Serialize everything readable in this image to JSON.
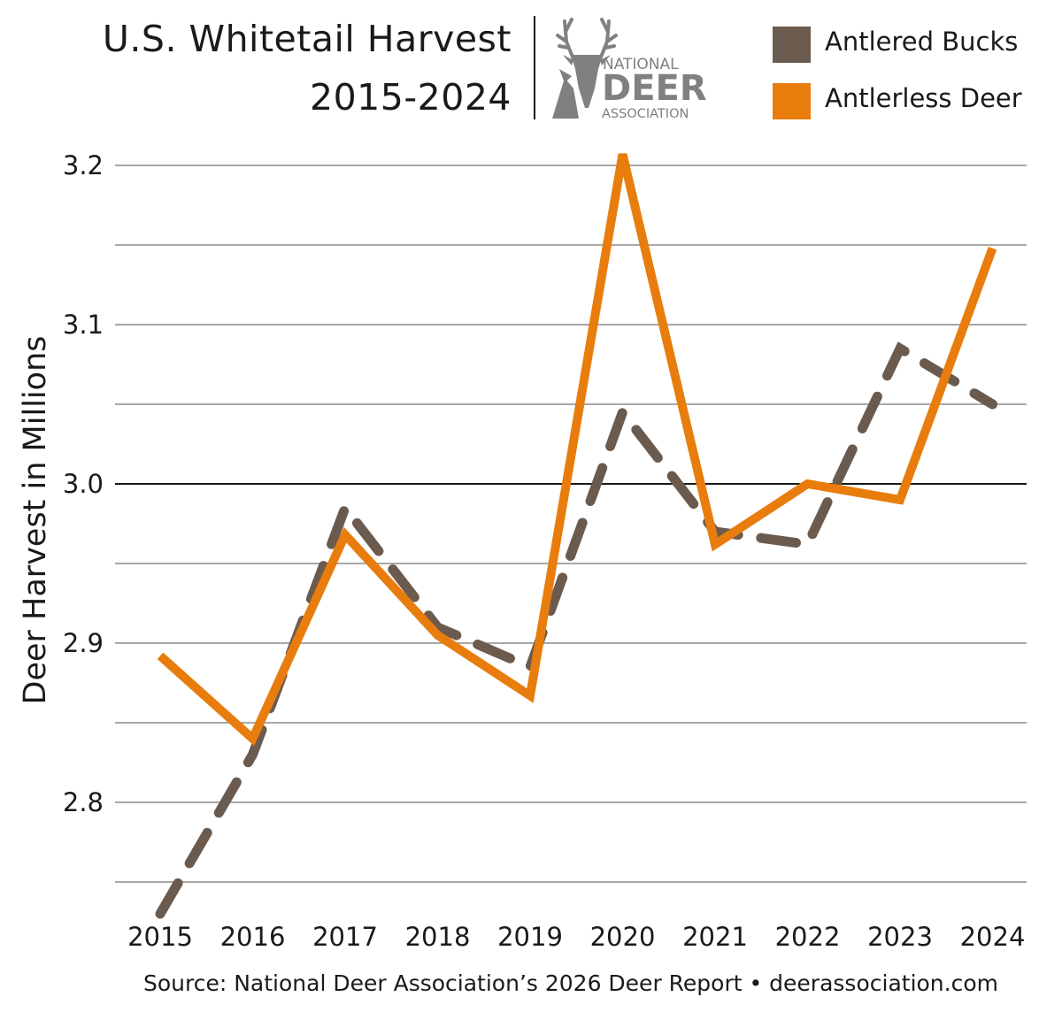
{
  "header": {
    "title_line1": "U.S. Whitetail Harvest",
    "title_line2": "2015-2024"
  },
  "logo": {
    "icon": "deer-head-icon",
    "line1": "NATIONAL",
    "line2": "DEER",
    "line3": "ASSOCIATION",
    "color": "#808080"
  },
  "footer": {
    "source": "Source: National Deer Association’s 2026 Deer Report • deerassociation.com"
  },
  "chart_data": {
    "type": "line",
    "title": "U.S. Whitetail Harvest 2015-2024",
    "ylabel": "Deer Harvest in Millions",
    "xlabel": "",
    "x": [
      "2015",
      "2016",
      "2017",
      "2018",
      "2019",
      "2020",
      "2021",
      "2022",
      "2023",
      "2024"
    ],
    "ylim": [
      2.75,
      3.225
    ],
    "yticks": [
      "2.8",
      "2.9",
      "3.0",
      "3.1",
      "3.2"
    ],
    "grid": true,
    "legend_position": "top-right",
    "series": [
      {
        "name": "Antlered Bucks",
        "color": "#6b5a4e",
        "style": "dashed",
        "values": [
          2.73,
          2.83,
          2.985,
          2.91,
          2.885,
          3.045,
          2.97,
          2.962,
          3.085,
          3.05
        ]
      },
      {
        "name": "Antlerless Deer",
        "color": "#e87d0d",
        "style": "solid",
        "values": [
          2.892,
          2.84,
          2.968,
          2.905,
          2.867,
          3.207,
          2.962,
          3.0,
          2.99,
          3.148
        ]
      }
    ]
  }
}
